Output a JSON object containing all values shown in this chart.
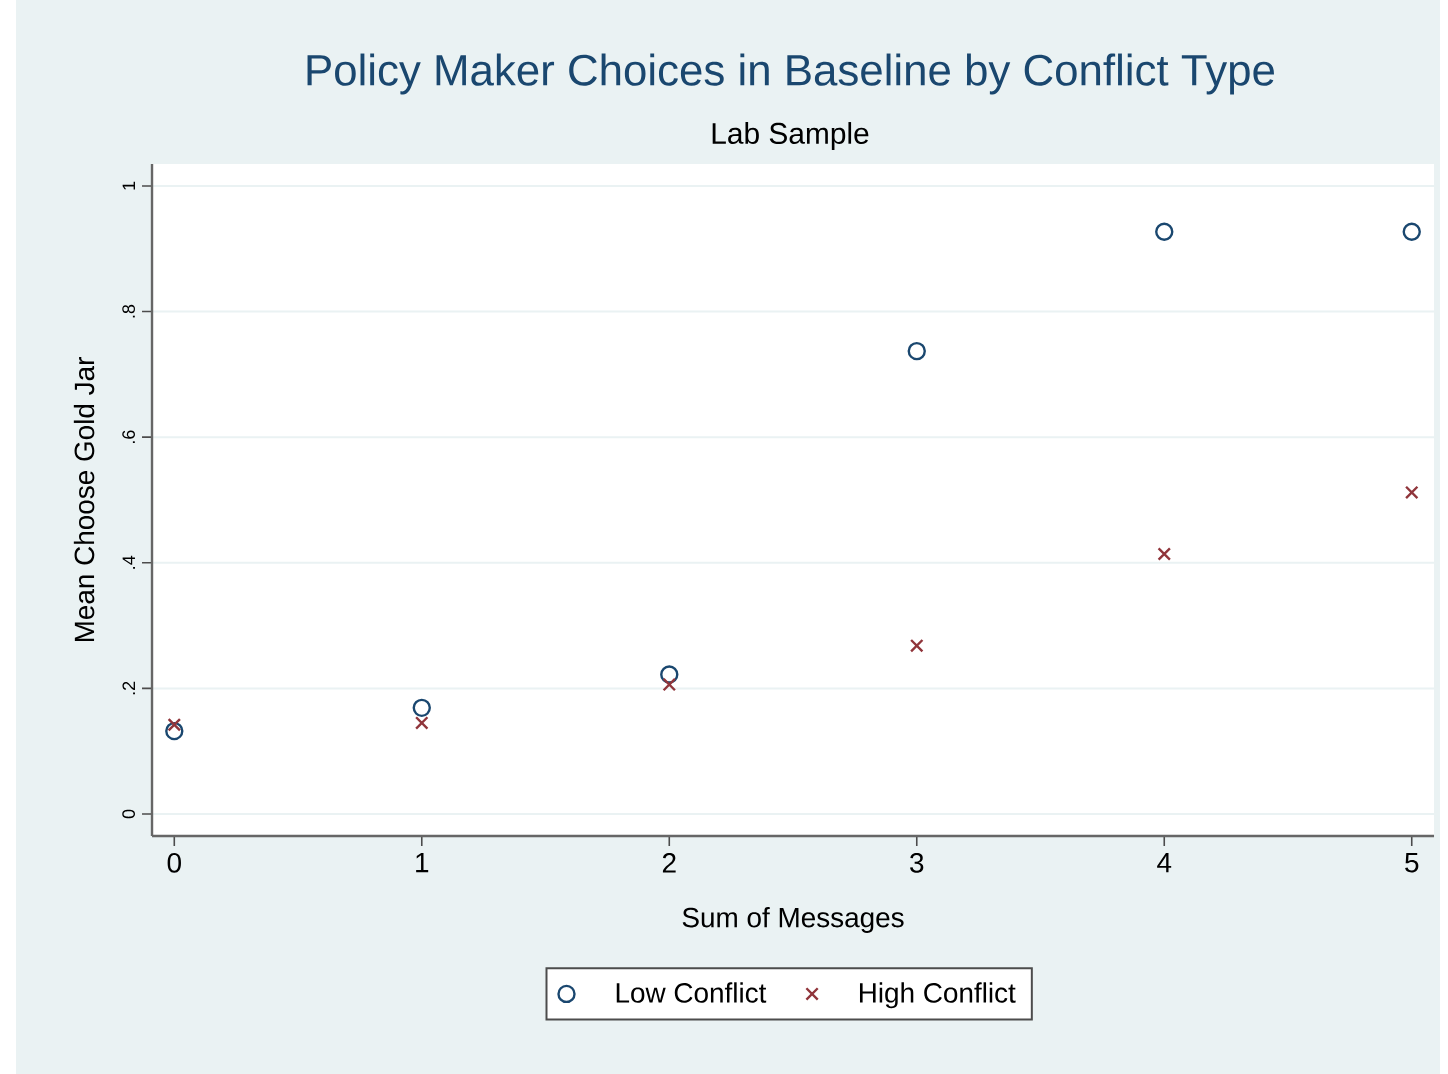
{
  "chart_data": {
    "type": "scatter",
    "title": "Policy Maker Choices in Baseline by Conflict Type",
    "subtitle": "Lab Sample",
    "xlabel": "Sum of Messages",
    "ylabel": "Mean Choose Gold Jar",
    "x": [
      0,
      1,
      2,
      3,
      4,
      5
    ],
    "series": [
      {
        "name": "Low Conflict",
        "color": "#1a476f",
        "marker": "circle",
        "values": [
          0.132,
          0.169,
          0.222,
          0.737,
          0.927,
          0.927
        ]
      },
      {
        "name": "High Conflict",
        "color": "#90353b",
        "marker": "cross",
        "values": [
          0.142,
          0.145,
          0.206,
          0.268,
          0.414,
          0.512
        ]
      }
    ],
    "xlim": [
      -0.09,
      5.09
    ],
    "xticks": [
      0,
      1,
      2,
      3,
      4,
      5
    ],
    "ylim": [
      -0.035,
      1.035
    ],
    "yticks": [
      0,
      {
        "value": 0.2,
        "label": ".2"
      },
      {
        "value": 0.4,
        "label": ".4"
      },
      {
        "value": 0.6,
        "label": ".6"
      },
      {
        "value": 0.8,
        "label": ".8"
      },
      1
    ],
    "grid": "y",
    "legend": "bottom"
  }
}
